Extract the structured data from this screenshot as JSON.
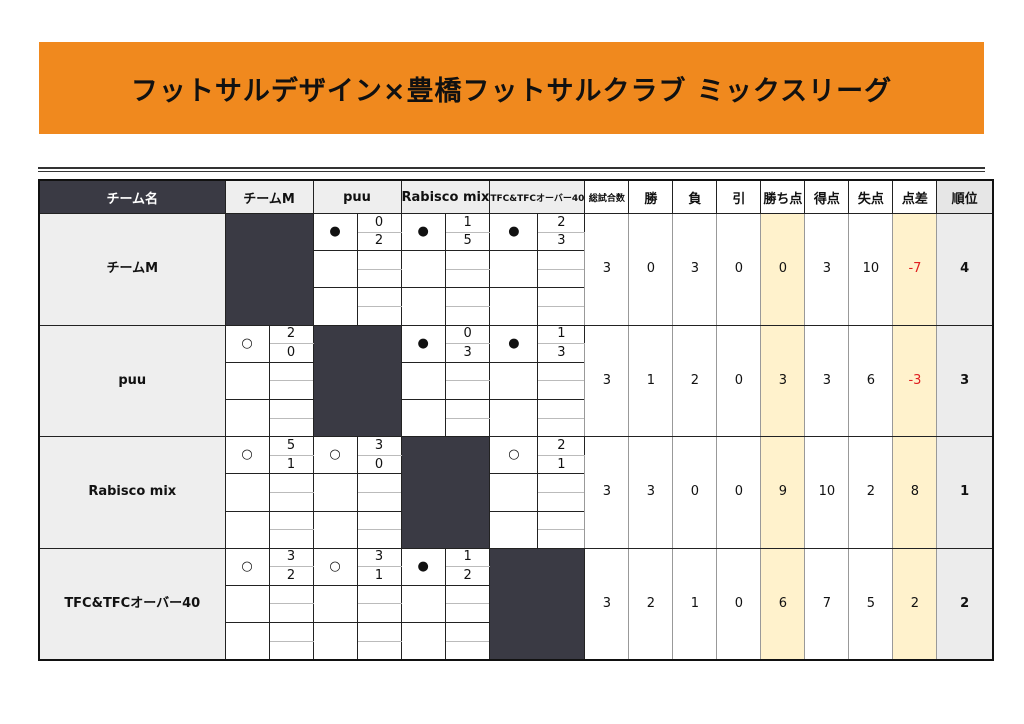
{
  "title": "フットサルデザイン×豊橋フットサルクラブ ミックスリーグ",
  "headers": {
    "team_name": "チーム名",
    "stats": [
      "総試合数",
      "勝",
      "負",
      "引",
      "勝ち点",
      "得点",
      "失点",
      "点差",
      "順位"
    ]
  },
  "teams": [
    "チームM",
    "puu",
    "Rabisco mix",
    "TFC&TFCオーバー40"
  ],
  "colors": {
    "banner": "#f0891e",
    "dark_cell": "#3a3a44",
    "highlight": "#fff2cc",
    "negative": "#e02020"
  },
  "icons": {
    "win": "○",
    "loss": "●"
  },
  "results": [
    [
      null,
      {
        "mark": "●",
        "for": "0",
        "against": "2"
      },
      {
        "mark": "●",
        "for": "1",
        "against": "5"
      },
      {
        "mark": "●",
        "for": "2",
        "against": "3"
      }
    ],
    [
      {
        "mark": "○",
        "for": "2",
        "against": "0"
      },
      null,
      {
        "mark": "●",
        "for": "0",
        "against": "3"
      },
      {
        "mark": "●",
        "for": "1",
        "against": "3"
      }
    ],
    [
      {
        "mark": "○",
        "for": "5",
        "against": "1"
      },
      {
        "mark": "○",
        "for": "3",
        "against": "0"
      },
      null,
      {
        "mark": "○",
        "for": "2",
        "against": "1"
      }
    ],
    [
      {
        "mark": "○",
        "for": "3",
        "against": "2"
      },
      {
        "mark": "○",
        "for": "3",
        "against": "1"
      },
      {
        "mark": "●",
        "for": "1",
        "against": "2"
      },
      null
    ]
  ],
  "stats": [
    [
      "3",
      "0",
      "3",
      "0",
      "0",
      "3",
      "10",
      "-7",
      "4"
    ],
    [
      "3",
      "1",
      "2",
      "0",
      "3",
      "3",
      "6",
      "-3",
      "3"
    ],
    [
      "3",
      "3",
      "0",
      "0",
      "9",
      "10",
      "2",
      "8",
      "1"
    ],
    [
      "3",
      "2",
      "1",
      "0",
      "6",
      "7",
      "5",
      "2",
      "2"
    ]
  ]
}
